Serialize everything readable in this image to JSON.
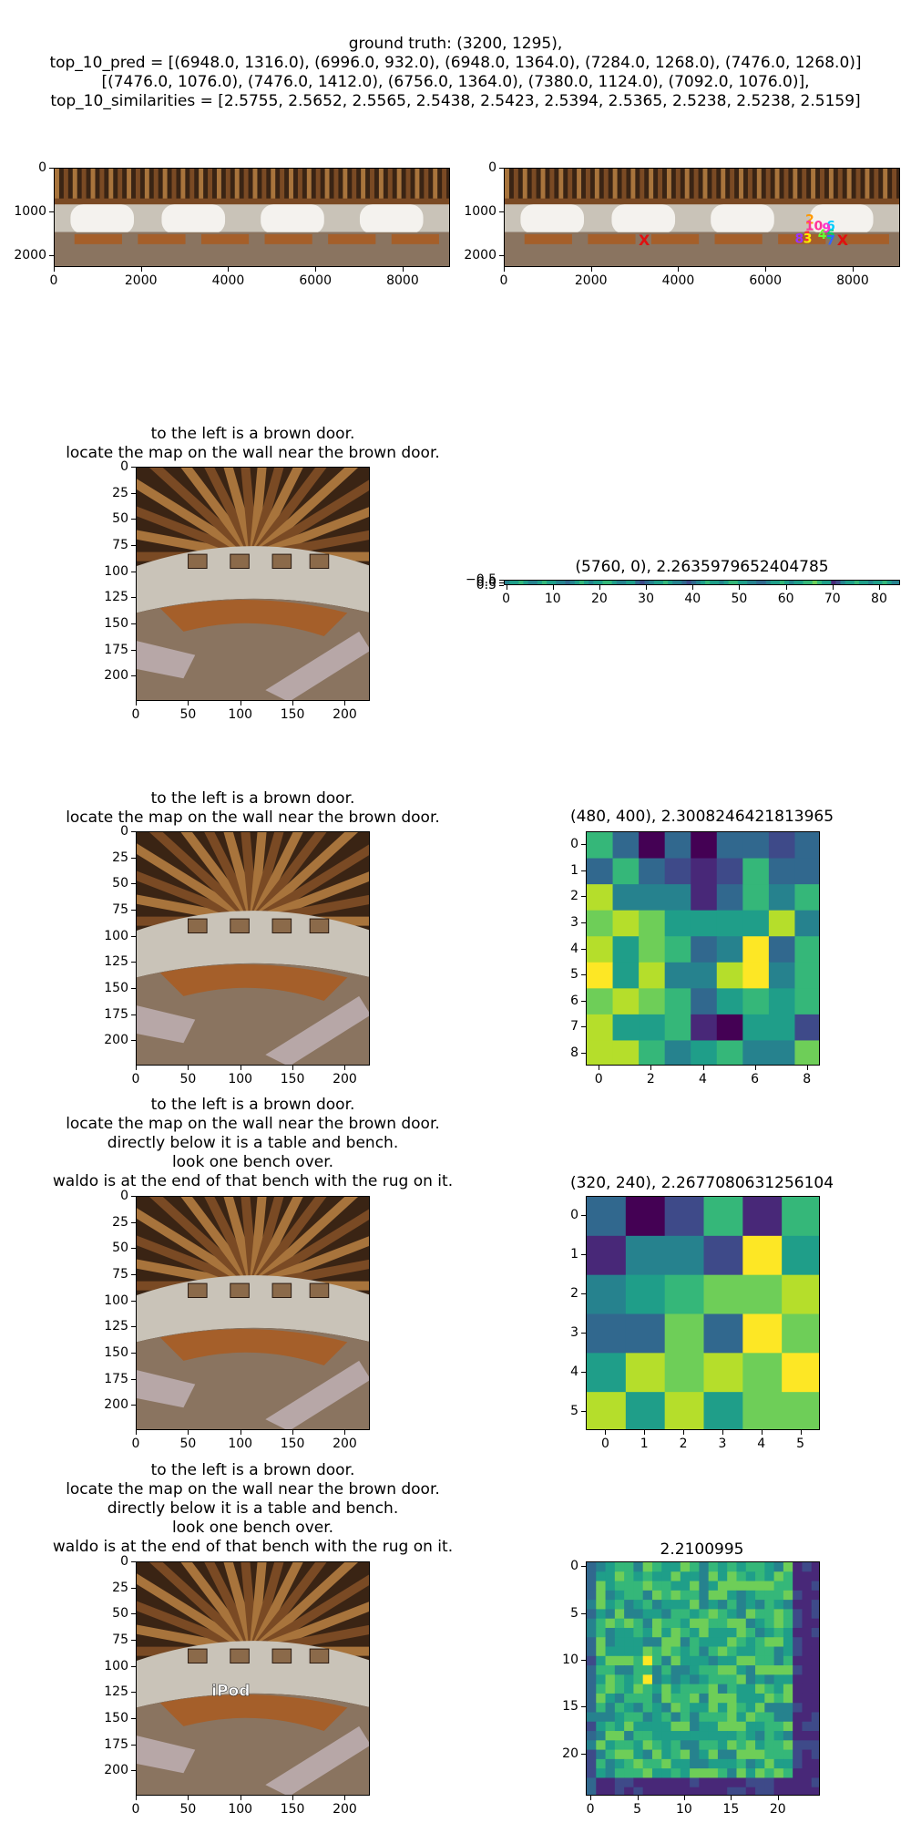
{
  "header": {
    "line1": "ground truth: (3200, 1295),",
    "line2": "top_10_pred = [(6948.0, 1316.0), (6996.0, 932.0), (6948.0, 1364.0), (7284.0, 1268.0), (7476.0, 1268.0)]",
    "line3": "[(7476.0, 1076.0), (7476.0, 1412.0), (6756.0, 1364.0), (7380.0, 1124.0), (7092.0, 1076.0)],",
    "line4": "top_10_similarities = [2.5755, 2.5652, 2.5565, 2.5438, 2.5423, 2.5394, 2.5365, 2.5238, 2.5238, 2.5159]"
  },
  "colors": {
    "wood_dark": "#3a2414",
    "wood_mid": "#7a4a24",
    "wood_light": "#a8743c",
    "wall": "#c9c3b8",
    "window": "#f4f2ee",
    "floor": "#8a7460",
    "table": "#a55f2a",
    "ground_truth_marker": "#e01010",
    "viridis": [
      "#440154",
      "#482878",
      "#3e4a89",
      "#31688e",
      "#26828e",
      "#1f9e89",
      "#35b779",
      "#6ece58",
      "#b5de2b",
      "#fde725"
    ]
  },
  "chart_data": [
    {
      "type": "image",
      "id": "panorama_gt",
      "xlim": [
        0,
        9088
      ],
      "ylim": [
        2272,
        0
      ],
      "xticks": [
        "0",
        "2000",
        "4000",
        "6000",
        "8000"
      ],
      "yticks": [
        "0",
        "1000",
        "2000"
      ]
    },
    {
      "type": "image",
      "id": "panorama_pred",
      "xlim": [
        0,
        9088
      ],
      "ylim": [
        2272,
        0
      ],
      "xticks": [
        "0",
        "2000",
        "4000",
        "6000",
        "8000"
      ],
      "yticks": [
        "0",
        "1000",
        "2000"
      ],
      "ground_truth": [
        3200,
        1295
      ],
      "predictions": [
        {
          "rank": "1",
          "x": 6948,
          "y": 1316,
          "color": "#ff3030"
        },
        {
          "rank": "2",
          "x": 6996,
          "y": 932,
          "color": "#ff9900"
        },
        {
          "rank": "3",
          "x": 6948,
          "y": 1364,
          "color": "#ffee00"
        },
        {
          "rank": "4",
          "x": 7284,
          "y": 1268,
          "color": "#66ff33"
        },
        {
          "rank": "5",
          "x": 7476,
          "y": 1268,
          "color": "#00cc66"
        },
        {
          "rank": "6",
          "x": 7476,
          "y": 1076,
          "color": "#00ccff"
        },
        {
          "rank": "7",
          "x": 7476,
          "y": 1412,
          "color": "#3366ff"
        },
        {
          "rank": "8",
          "x": 6756,
          "y": 1364,
          "color": "#9933ff"
        },
        {
          "rank": "9",
          "x": 7380,
          "y": 1124,
          "color": "#ff33cc"
        },
        {
          "rank": "10",
          "x": 7092,
          "y": 1076,
          "color": "#ff3399"
        }
      ],
      "x_markers": [
        {
          "label": "X",
          "x": 3200,
          "y": 1295,
          "color": "#e01010"
        },
        {
          "label": "X",
          "x": 7750,
          "y": 1295,
          "color": "#e01010"
        }
      ]
    },
    {
      "type": "image",
      "id": "crop_1",
      "title_lines": [
        "to the left is a brown door.",
        "locate the map on the wall near the brown door."
      ],
      "xlim": [
        0,
        224
      ],
      "ylim": [
        224,
        0
      ],
      "xticks": [
        "0",
        "50",
        "100",
        "150",
        "200"
      ],
      "yticks": [
        "0",
        "25",
        "50",
        "75",
        "100",
        "125",
        "150",
        "175",
        "200"
      ]
    },
    {
      "type": "heatmap",
      "id": "heat_1",
      "title": "(5760, 0), 2.2635979652404785",
      "rows": 1,
      "cols": 85,
      "xticks": [
        "0",
        "10",
        "20",
        "30",
        "40",
        "50",
        "60",
        "70",
        "80"
      ],
      "yticks": [
        "−0.5",
        "0.0",
        "0.5"
      ],
      "values": [
        [
          0.45,
          0.5,
          0.55,
          0.6,
          0.5,
          0.4,
          0.45,
          0.55,
          0.6,
          0.55,
          0.5,
          0.45,
          0.4,
          0.35,
          0.45,
          0.55,
          0.6,
          0.5,
          0.45,
          0.5,
          0.55,
          0.6,
          0.65,
          0.5,
          0.45,
          0.4,
          0.5,
          0.55,
          0.35,
          0.2,
          0.3,
          0.45,
          0.5,
          0.55,
          0.6,
          0.5,
          0.45,
          0.4,
          0.3,
          0.25,
          0.35,
          0.45,
          0.55,
          0.6,
          0.55,
          0.5,
          0.45,
          0.5,
          0.6,
          0.65,
          0.55,
          0.5,
          0.45,
          0.4,
          0.35,
          0.3,
          0.4,
          0.5,
          0.55,
          0.6,
          0.5,
          0.45,
          0.5,
          0.55,
          0.6,
          0.65,
          0.7,
          0.6,
          0.55,
          0.5,
          0.1,
          0.2,
          0.4,
          0.5,
          0.55,
          0.6,
          0.55,
          0.5,
          0.45,
          0.5,
          0.55,
          0.6,
          0.5,
          0.45,
          0.4
        ]
      ]
    },
    {
      "type": "image",
      "id": "crop_2",
      "title_lines": [
        "to the left is a brown door.",
        "locate the map on the wall near the brown door."
      ],
      "xlim": [
        0,
        224
      ],
      "ylim": [
        224,
        0
      ],
      "xticks": [
        "0",
        "50",
        "100",
        "150",
        "200"
      ],
      "yticks": [
        "0",
        "25",
        "50",
        "75",
        "100",
        "125",
        "150",
        "175",
        "200"
      ]
    },
    {
      "type": "heatmap",
      "id": "heat_2",
      "title": "(480, 400), 2.3008246421813965",
      "rows": 9,
      "cols": 9,
      "xticks": [
        "0",
        "2",
        "4",
        "6",
        "8"
      ],
      "yticks": [
        "0",
        "1",
        "2",
        "3",
        "4",
        "5",
        "6",
        "7",
        "8"
      ],
      "values": [
        [
          0.6,
          0.3,
          0.0,
          0.3,
          0.0,
          0.3,
          0.3,
          0.2,
          0.3
        ],
        [
          0.3,
          0.6,
          0.3,
          0.25,
          0.1,
          0.2,
          0.6,
          0.3,
          0.3
        ],
        [
          0.8,
          0.4,
          0.4,
          0.45,
          0.1,
          0.3,
          0.6,
          0.4,
          0.6
        ],
        [
          0.7,
          0.8,
          0.75,
          0.5,
          0.5,
          0.5,
          0.55,
          0.8,
          0.45
        ],
        [
          0.85,
          0.5,
          0.7,
          0.6,
          0.3,
          0.45,
          0.95,
          0.35,
          0.6
        ],
        [
          0.95,
          0.55,
          0.85,
          0.45,
          0.4,
          0.8,
          1.0,
          0.4,
          0.65
        ],
        [
          0.7,
          0.8,
          0.7,
          0.6,
          0.35,
          0.55,
          0.6,
          0.5,
          0.6
        ],
        [
          0.8,
          0.5,
          0.55,
          0.65,
          0.1,
          0.05,
          0.55,
          0.5,
          0.25
        ],
        [
          0.85,
          0.8,
          0.6,
          0.45,
          0.55,
          0.65,
          0.4,
          0.45,
          0.7
        ]
      ]
    },
    {
      "type": "image",
      "id": "crop_3",
      "title_lines": [
        "to the left is a brown door.",
        "locate the map on the wall near the brown door.",
        "directly below it is a table and bench.",
        "look one bench over.",
        "waldo is at the end of that bench with the rug on it."
      ],
      "xlim": [
        0,
        224
      ],
      "ylim": [
        224,
        0
      ],
      "xticks": [
        "0",
        "50",
        "100",
        "150",
        "200"
      ],
      "yticks": [
        "0",
        "25",
        "50",
        "75",
        "100",
        "125",
        "150",
        "175",
        "200"
      ]
    },
    {
      "type": "heatmap",
      "id": "heat_3",
      "title": "(320, 240), 2.2677080631256104",
      "rows": 6,
      "cols": 6,
      "xticks": [
        "0",
        "1",
        "2",
        "3",
        "4",
        "5"
      ],
      "yticks": [
        "0",
        "1",
        "2",
        "3",
        "4",
        "5"
      ],
      "values": [
        [
          0.3,
          0.0,
          0.25,
          0.6,
          0.1,
          0.6
        ],
        [
          0.15,
          0.4,
          0.45,
          0.25,
          0.95,
          0.5
        ],
        [
          0.45,
          0.55,
          0.6,
          0.7,
          0.7,
          0.8
        ],
        [
          0.3,
          0.35,
          0.7,
          0.35,
          1.0,
          0.7
        ],
        [
          0.55,
          0.85,
          0.7,
          0.8,
          0.7,
          0.95
        ],
        [
          0.8,
          0.5,
          0.85,
          0.5,
          0.7,
          0.75
        ]
      ]
    },
    {
      "type": "image",
      "id": "crop_4",
      "title_lines": [
        "to the left is a brown door.",
        "locate the map on the wall near the brown door.",
        "directly below it is a table and bench.",
        "look one bench over.",
        "waldo is at the end of that bench with the rug on it."
      ],
      "xlim": [
        0,
        224
      ],
      "ylim": [
        224,
        0
      ],
      "xticks": [
        "0",
        "50",
        "100",
        "150",
        "200"
      ],
      "yticks": [
        "0",
        "25",
        "50",
        "75",
        "100",
        "125",
        "150",
        "175",
        "200"
      ],
      "overlay_label": "iPod"
    },
    {
      "type": "heatmap",
      "id": "heat_4",
      "title": "2.2100995",
      "rows": 25,
      "cols": 25,
      "xticks": [
        "0",
        "5",
        "10",
        "15",
        "20"
      ],
      "yticks": [
        "0",
        "5",
        "10",
        "15",
        "20"
      ],
      "seed": 7
    }
  ]
}
